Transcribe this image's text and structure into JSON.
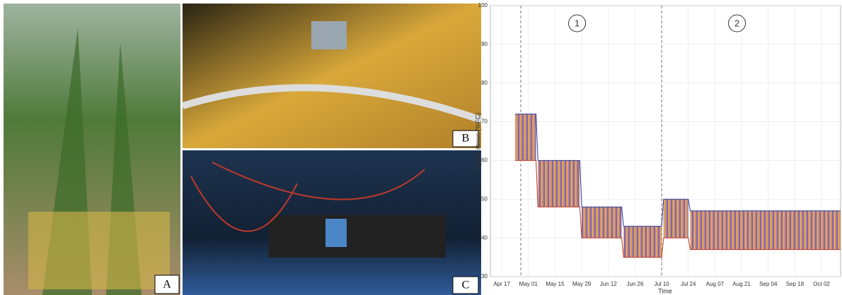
{
  "panels": [
    "A",
    "B",
    "C"
  ],
  "chart_data": {
    "type": "band",
    "y_label": "Hydric stress (%FC)",
    "x_label": "Time",
    "annotations": [
      "1",
      "2"
    ],
    "markers": [
      "Apr 27",
      "Jul 10"
    ],
    "x": [
      "Apr 24",
      "May 05",
      "May 06",
      "May 28",
      "May 29",
      "Jun 19",
      "Jun 20",
      "Jul 10",
      "Jul 11",
      "Jul 24",
      "Jul 25",
      "Oct 12"
    ],
    "series": [
      {
        "color": "#c0392b",
        "values": [
          60,
          60,
          48,
          48,
          40,
          40,
          35,
          35,
          40,
          40,
          37,
          37
        ]
      },
      {
        "color": "#2c3e99",
        "values": [
          72,
          72,
          60,
          60,
          48,
          48,
          43,
          43,
          50,
          50,
          47,
          47
        ]
      }
    ],
    "xlim": [
      "Apr 11",
      "Oct 12"
    ],
    "xticks": [
      "Apr 17",
      "May 01",
      "May 15",
      "May 29",
      "Jun 12",
      "Jun 26",
      "Jul 10",
      "Jul 24",
      "Aug 07",
      "Aug 21",
      "Sep 04",
      "Sep 18",
      "Oct 02"
    ],
    "ylim": [
      30,
      100
    ],
    "yticks": [
      30,
      40,
      50,
      60,
      70,
      80,
      90,
      100
    ],
    "grid": true
  }
}
